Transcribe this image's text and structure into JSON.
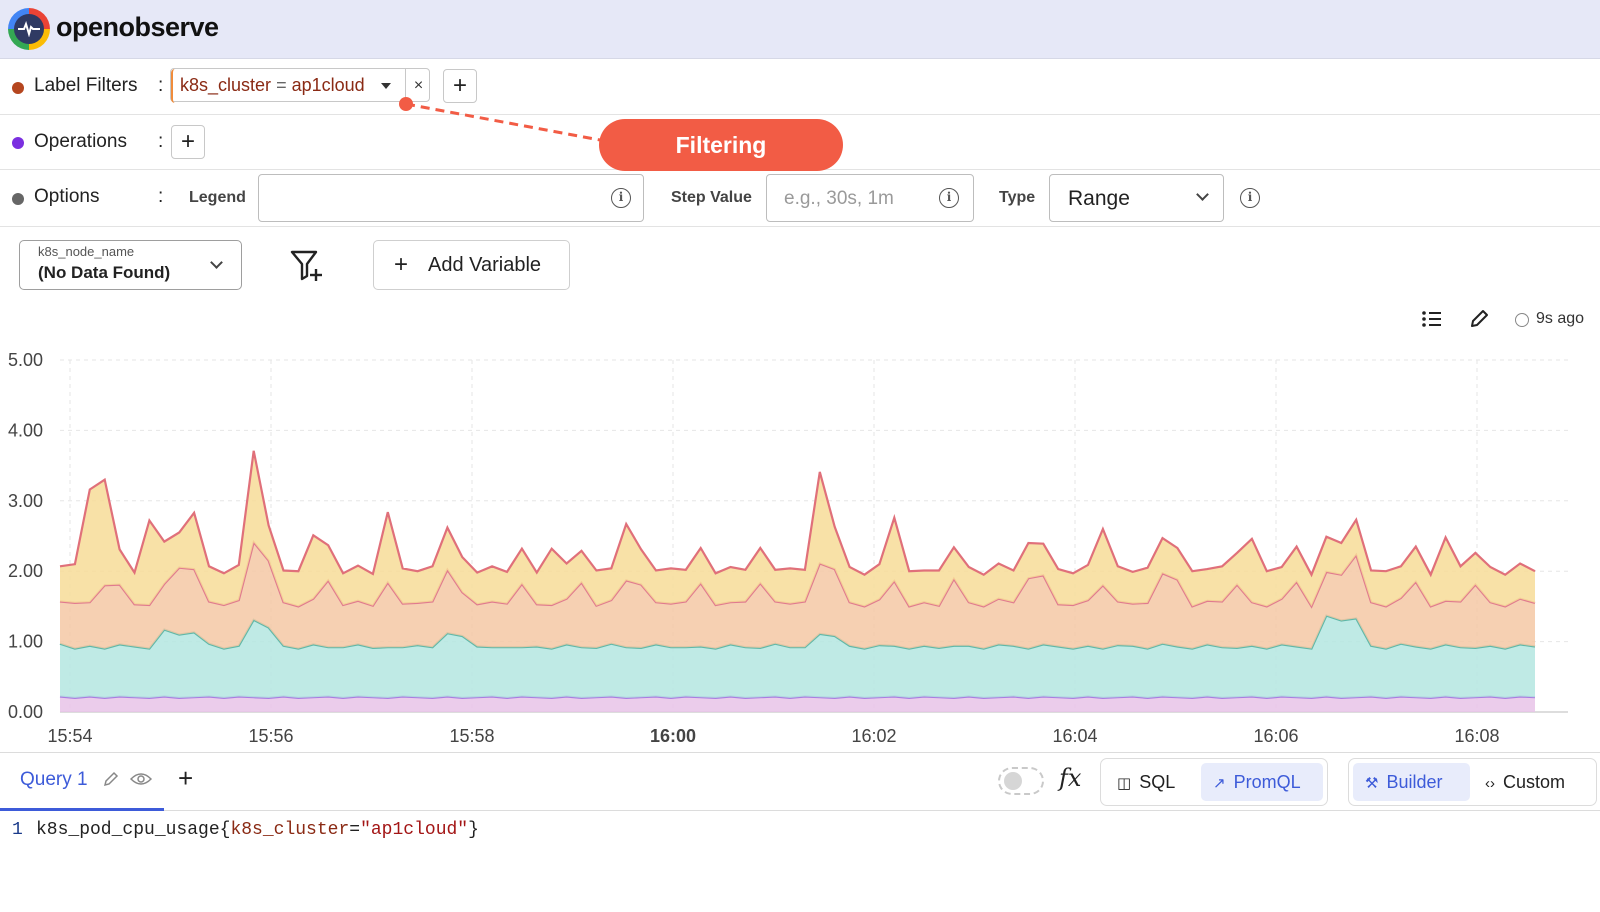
{
  "app": {
    "name": "openobserve"
  },
  "builder": {
    "label_filters": {
      "label": "Label Filters",
      "dot_color": "#b5461f",
      "chip_label": "k8s_cluster",
      "chip_op": "=",
      "chip_value": "ap1cloud",
      "remove": "×",
      "add": "+"
    },
    "operations": {
      "label": "Operations",
      "dot_color": "#7b2fe0",
      "add": "+"
    },
    "options": {
      "label": "Options",
      "dot_color": "#666666",
      "legend_label": "Legend",
      "legend_value": "",
      "step_label": "Step Value",
      "step_placeholder": "e.g., 30s, 1m",
      "type_label": "Type",
      "type_value": "Range"
    },
    "colon": ":"
  },
  "annotation": {
    "label": "Filtering",
    "color": "#f25c45"
  },
  "variables": {
    "node_name": {
      "label": "k8s_node_name",
      "value": "(No Data Found)"
    },
    "add_variable": "Add Variable",
    "plus": "+"
  },
  "chart_toolbar": {
    "refreshed": "9s ago"
  },
  "chart_data": {
    "type": "area",
    "title": "",
    "x_ticks": [
      "15:54",
      "15:56",
      "15:58",
      "16:00",
      "16:02",
      "16:04",
      "16:06",
      "16:08"
    ],
    "y_ticks": [
      "0.00",
      "1.00",
      "2.00",
      "3.00",
      "4.00",
      "5.00"
    ],
    "ylim": [
      0,
      5
    ],
    "stacked": true,
    "grid": true,
    "series_colors": [
      "#e8c3e8",
      "#b4e6e0",
      "#f5c8a4",
      "#f7dc98"
    ],
    "series": [
      {
        "name": "",
        "values": [
          0.22,
          0.2,
          0.22,
          0.2,
          0.22,
          0.21,
          0.2,
          0.22,
          0.2,
          0.21,
          0.22,
          0.2,
          0.22,
          0.21,
          0.2,
          0.22,
          0.2,
          0.21,
          0.22,
          0.2,
          0.22,
          0.21,
          0.2,
          0.22,
          0.21,
          0.2,
          0.22,
          0.2,
          0.21,
          0.22,
          0.2,
          0.22,
          0.21,
          0.2,
          0.22,
          0.2,
          0.21,
          0.22,
          0.2,
          0.21,
          0.22,
          0.2,
          0.22,
          0.21,
          0.2,
          0.22,
          0.2,
          0.21,
          0.22,
          0.2,
          0.22,
          0.21,
          0.2,
          0.22,
          0.2,
          0.21,
          0.22,
          0.2,
          0.22,
          0.21,
          0.2,
          0.22,
          0.2,
          0.21,
          0.22,
          0.2,
          0.22,
          0.21,
          0.2,
          0.22,
          0.2,
          0.21,
          0.22,
          0.2,
          0.22,
          0.21,
          0.2,
          0.22,
          0.2,
          0.21,
          0.22,
          0.2,
          0.22,
          0.21,
          0.2,
          0.22,
          0.2,
          0.21,
          0.22,
          0.2,
          0.22,
          0.21,
          0.2,
          0.22,
          0.2,
          0.21,
          0.22,
          0.2,
          0.22,
          0.21
        ]
      },
      {
        "name": "",
        "values": [
          0.75,
          0.7,
          0.72,
          0.7,
          0.74,
          0.72,
          0.7,
          0.95,
          0.9,
          0.92,
          0.75,
          0.7,
          0.72,
          1.1,
          1.0,
          0.72,
          0.7,
          0.75,
          0.7,
          0.72,
          0.74,
          0.7,
          0.72,
          0.7,
          0.74,
          0.72,
          0.9,
          0.88,
          0.72,
          0.7,
          0.72,
          0.7,
          0.72,
          0.7,
          0.74,
          0.72,
          0.7,
          0.75,
          0.72,
          0.7,
          0.74,
          0.72,
          0.7,
          0.72,
          0.7,
          0.74,
          0.72,
          0.7,
          0.75,
          0.72,
          0.7,
          0.9,
          0.88,
          0.72,
          0.7,
          0.74,
          0.72,
          0.7,
          0.72,
          0.7,
          0.74,
          0.72,
          0.7,
          0.75,
          0.72,
          0.7,
          0.74,
          0.72,
          0.7,
          0.72,
          0.7,
          0.74,
          0.72,
          0.7,
          0.75,
          0.72,
          0.7,
          0.74,
          0.72,
          0.7,
          0.72,
          0.7,
          0.74,
          0.72,
          0.7,
          1.15,
          1.1,
          1.12,
          0.72,
          0.7,
          0.75,
          0.72,
          0.7,
          0.74,
          0.72,
          0.7,
          0.72,
          0.7,
          0.74,
          0.72
        ]
      },
      {
        "name": "",
        "values": [
          0.6,
          0.65,
          0.62,
          0.9,
          0.85,
          0.6,
          0.62,
          0.65,
          0.95,
          0.9,
          0.6,
          0.62,
          0.65,
          1.1,
          0.95,
          0.62,
          0.6,
          0.65,
          0.95,
          0.6,
          0.62,
          0.6,
          0.92,
          0.62,
          0.6,
          0.65,
          0.9,
          0.62,
          0.6,
          0.65,
          0.62,
          0.9,
          0.6,
          0.62,
          0.65,
          0.92,
          0.6,
          0.62,
          0.95,
          0.9,
          0.6,
          0.62,
          0.65,
          0.9,
          0.62,
          0.6,
          0.65,
          0.92,
          0.6,
          0.62,
          0.65,
          1.0,
          0.95,
          0.62,
          0.6,
          0.65,
          0.92,
          0.6,
          0.62,
          0.6,
          0.95,
          0.62,
          0.6,
          0.65,
          0.62,
          1.0,
          0.98,
          0.6,
          0.62,
          0.65,
          0.9,
          0.62,
          0.6,
          0.65,
          1.0,
          0.95,
          0.6,
          0.62,
          0.65,
          0.9,
          0.62,
          0.6,
          0.65,
          0.92,
          0.6,
          0.62,
          0.65,
          0.9,
          0.62,
          0.6,
          0.65,
          0.92,
          0.6,
          0.62,
          0.65,
          0.9,
          0.62,
          0.6,
          0.65,
          0.62
        ]
      },
      {
        "name": "",
        "values": [
          0.5,
          0.55,
          1.6,
          1.5,
          0.5,
          0.45,
          1.2,
          0.6,
          0.5,
          0.8,
          0.5,
          0.45,
          0.5,
          1.3,
          0.5,
          0.45,
          0.5,
          0.9,
          0.5,
          0.45,
          0.5,
          0.45,
          1.0,
          0.5,
          0.45,
          0.5,
          0.6,
          0.5,
          0.45,
          0.5,
          0.45,
          0.5,
          0.45,
          0.8,
          0.5,
          0.45,
          0.5,
          0.45,
          0.8,
          0.5,
          0.45,
          0.5,
          0.45,
          0.5,
          0.45,
          0.5,
          0.45,
          0.5,
          0.45,
          0.5,
          0.45,
          1.3,
          0.6,
          0.5,
          0.45,
          0.5,
          0.9,
          0.5,
          0.45,
          0.5,
          0.45,
          0.5,
          0.45,
          0.5,
          0.45,
          0.5,
          0.45,
          0.5,
          0.45,
          0.5,
          0.8,
          0.5,
          0.45,
          0.5,
          0.5,
          0.45,
          0.5,
          0.45,
          0.5,
          0.45,
          0.9,
          0.5,
          0.45,
          0.5,
          0.45,
          0.5,
          0.45,
          0.5,
          0.45,
          0.5,
          0.45,
          0.5,
          0.45,
          0.9,
          0.5,
          0.45,
          0.5,
          0.45,
          0.5,
          0.45
        ]
      }
    ]
  },
  "query_bar": {
    "tab": "Query 1",
    "add": "+",
    "fx": "fx",
    "sql": "SQL",
    "promql": "PromQL",
    "builder": "Builder",
    "custom": "Custom"
  },
  "editor": {
    "line_number": "1",
    "metric": "k8s_pod_cpu_usage{",
    "label_key": "k8s_cluster",
    "eq": "=",
    "label_value": "\"ap1cloud\"",
    "close": "}"
  }
}
